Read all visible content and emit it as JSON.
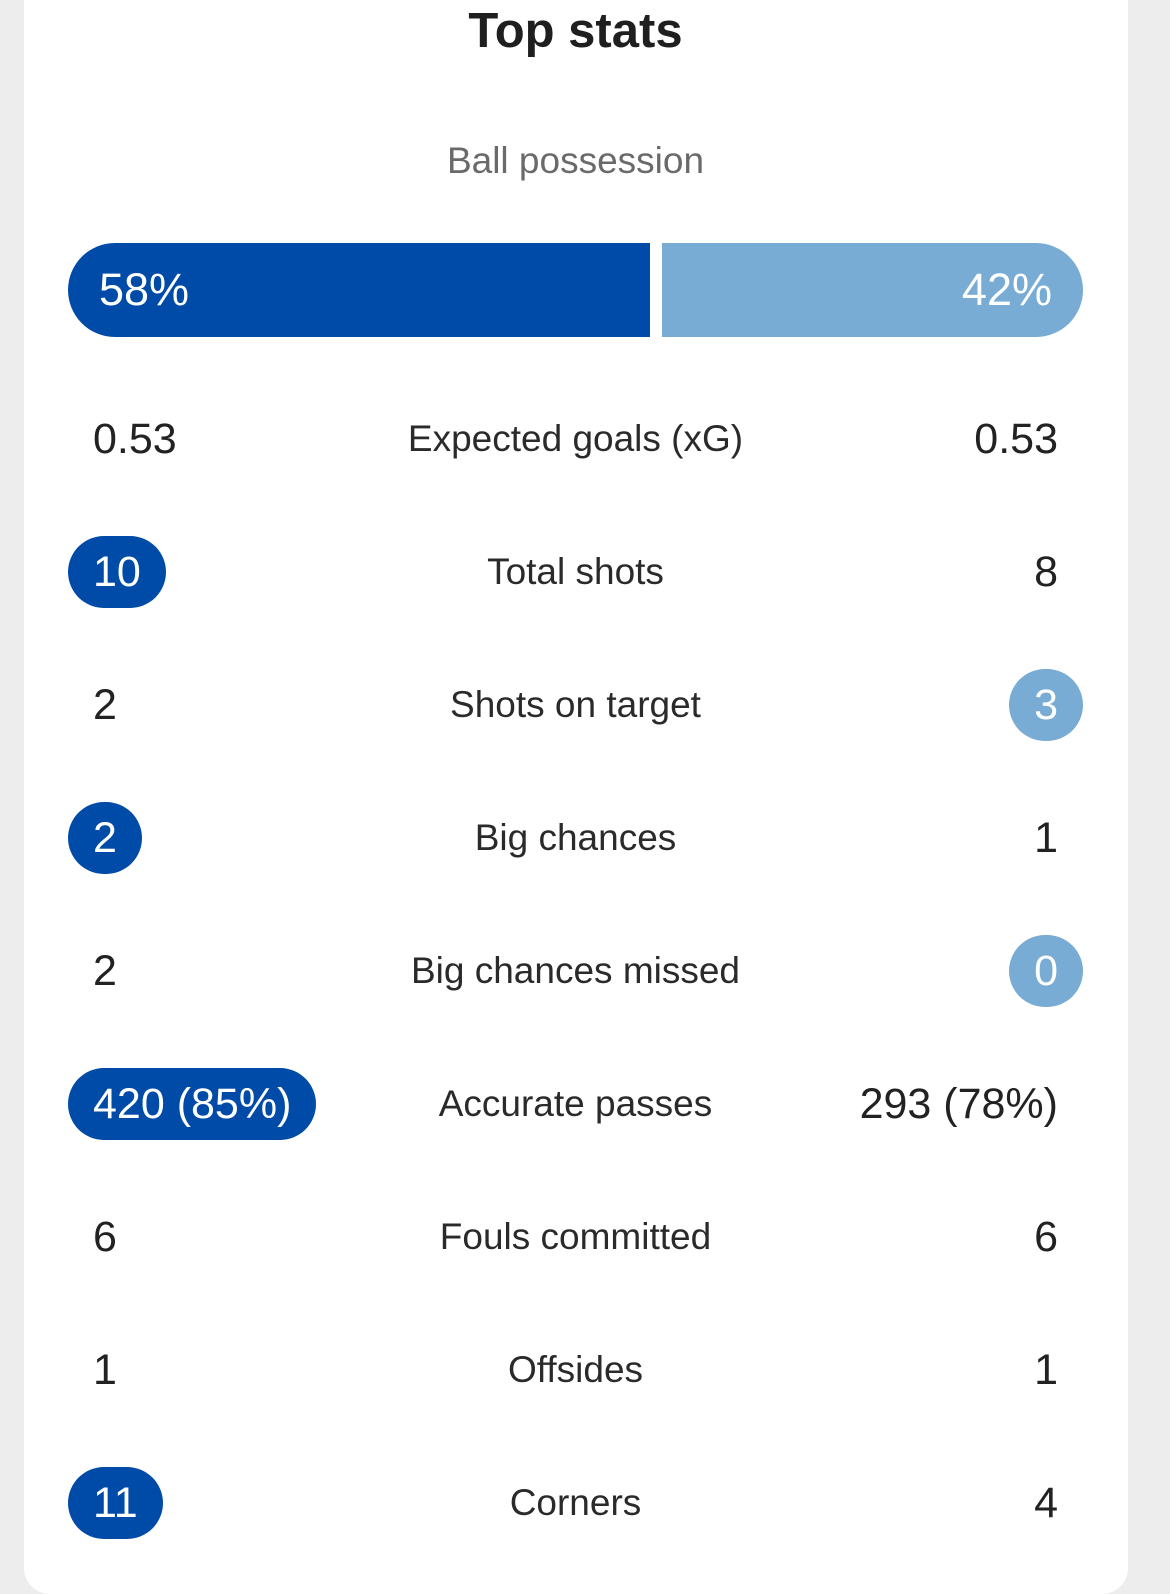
{
  "title": "Top stats",
  "possession": {
    "label": "Ball possession",
    "home": "58%",
    "away": "42%",
    "home_share": 0.58,
    "home_color": "#004ba8",
    "away_color": "#78acd4"
  },
  "stats": [
    {
      "label": "Expected goals (xG)",
      "home": "0.53",
      "away": "0.53",
      "highlight": "none"
    },
    {
      "label": "Total shots",
      "home": "10",
      "away": "8",
      "highlight": "home"
    },
    {
      "label": "Shots on target",
      "home": "2",
      "away": "3",
      "highlight": "away"
    },
    {
      "label": "Big chances",
      "home": "2",
      "away": "1",
      "highlight": "home"
    },
    {
      "label": "Big chances missed",
      "home": "2",
      "away": "0",
      "highlight": "away"
    },
    {
      "label": "Accurate passes",
      "home": "420 (85%)",
      "away": "293 (78%)",
      "highlight": "home"
    },
    {
      "label": "Fouls committed",
      "home": "6",
      "away": "6",
      "highlight": "none"
    },
    {
      "label": "Offsides",
      "home": "1",
      "away": "1",
      "highlight": "none"
    },
    {
      "label": "Corners",
      "home": "11",
      "away": "4",
      "highlight": "home"
    }
  ]
}
